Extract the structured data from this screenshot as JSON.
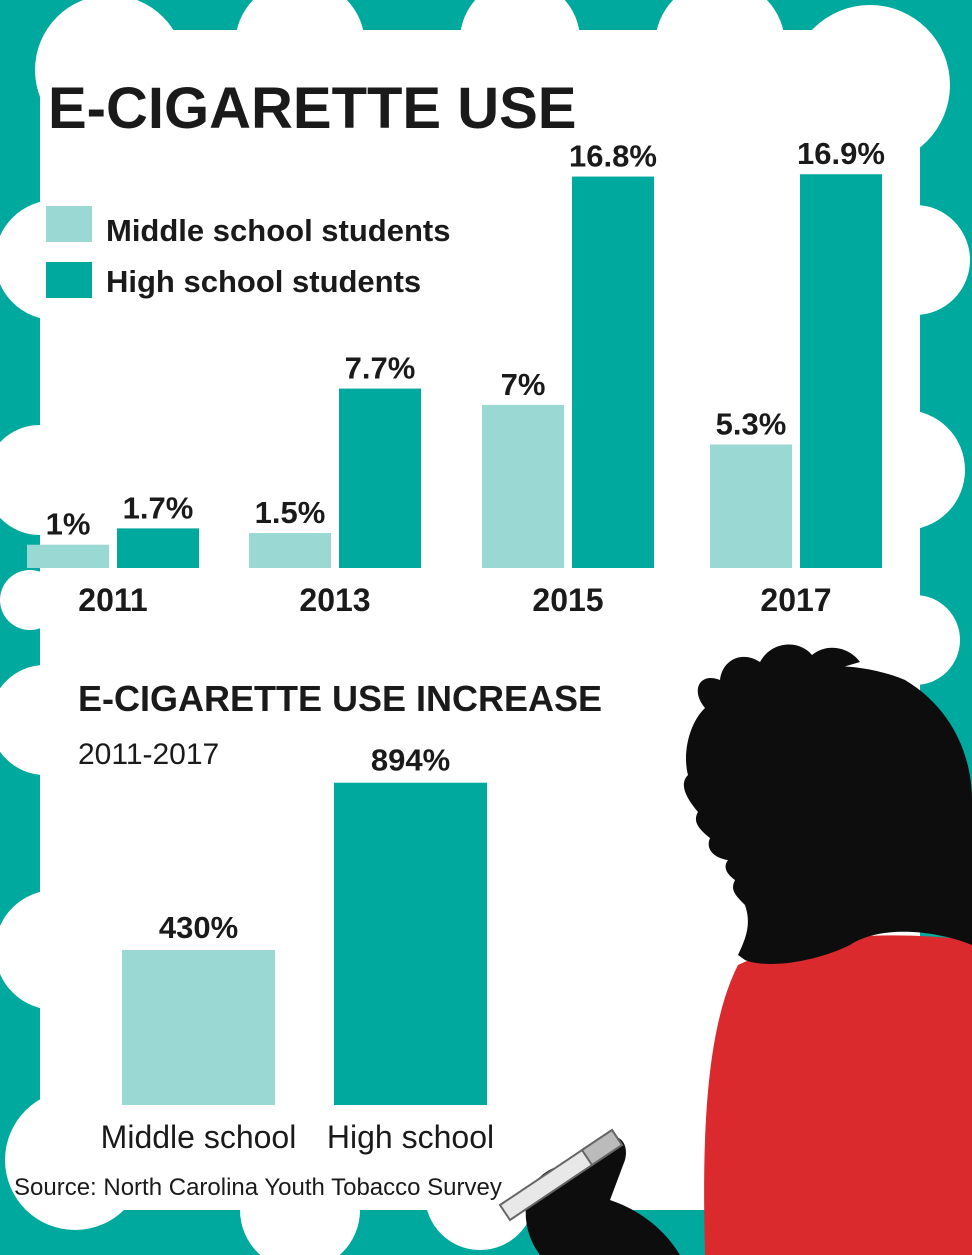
{
  "colors": {
    "teal": "#00a99d",
    "light_teal": "#9ad8d3",
    "silhouette": "#0d0d0d",
    "shirt": "#da2a2d",
    "background": "#ffffff"
  },
  "source": "Source: North Carolina Youth Tobacco Survey",
  "chart_data": [
    {
      "type": "bar",
      "title": "E-CIGARETTE USE",
      "categories": [
        "2011",
        "2013",
        "2015",
        "2017"
      ],
      "series": [
        {
          "name": "Middle school students",
          "values": [
            1,
            1.5,
            7,
            5.3
          ],
          "labels": [
            "1%",
            "1.5%",
            "7%",
            "5.3%"
          ],
          "color": "#9ad8d3"
        },
        {
          "name": "High school students",
          "values": [
            1.7,
            7.7,
            16.8,
            16.9
          ],
          "labels": [
            "1.7%",
            "7.7%",
            "16.8%",
            "16.9%"
          ],
          "color": "#00a99d"
        }
      ],
      "legend": "top-left",
      "grid": false
    },
    {
      "type": "bar",
      "title": "E-CIGARETTE USE INCREASE",
      "subtitle": "2011-2017",
      "categories": [
        "Middle school",
        "High school"
      ],
      "values": [
        430,
        894
      ],
      "labels": [
        "430%",
        "894%"
      ],
      "colors": [
        "#9ad8d3",
        "#00a99d"
      ],
      "grid": false
    }
  ]
}
